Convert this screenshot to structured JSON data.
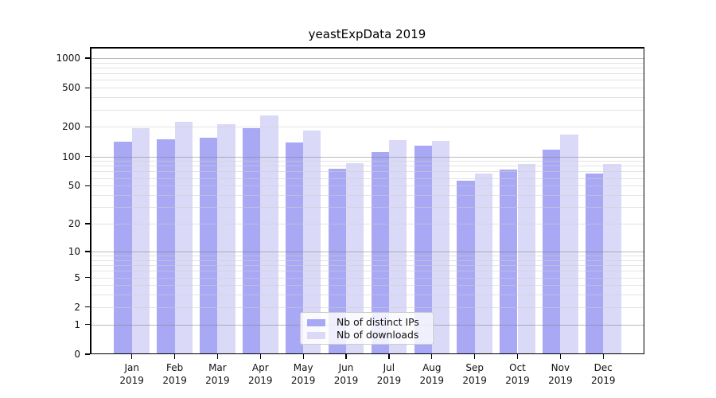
{
  "chart_data": {
    "type": "bar",
    "title": "yeastExpData 2019",
    "scale": "log1p",
    "grid": true,
    "legend_position": "lower center inside axes",
    "categories": [
      "Jan 2019",
      "Feb 2019",
      "Mar 2019",
      "Apr 2019",
      "May 2019",
      "Jun 2019",
      "Jul 2019",
      "Aug 2019",
      "Sep 2019",
      "Oct 2019",
      "Nov 2019",
      "Dec 2019"
    ],
    "x_tick_lines": [
      [
        "Jan",
        "2019"
      ],
      [
        "Feb",
        "2019"
      ],
      [
        "Mar",
        "2019"
      ],
      [
        "Apr",
        "2019"
      ],
      [
        "May",
        "2019"
      ],
      [
        "Jun",
        "2019"
      ],
      [
        "Jul",
        "2019"
      ],
      [
        "Aug",
        "2019"
      ],
      [
        "Sep",
        "2019"
      ],
      [
        "Oct",
        "2019"
      ],
      [
        "Nov",
        "2019"
      ],
      [
        "Dec",
        "2019"
      ]
    ],
    "series": [
      {
        "name": "Nb of distinct IPs",
        "color": "#a8a8f4",
        "values": [
          141,
          149,
          156,
          195,
          140,
          75,
          110,
          128,
          56,
          73,
          118,
          67
        ]
      },
      {
        "name": "Nb of downloads",
        "color": "#dadaf8",
        "values": [
          193,
          225,
          215,
          262,
          185,
          85,
          148,
          144,
          67,
          84,
          167,
          83
        ]
      }
    ],
    "xlabel": "",
    "ylabel": "",
    "y_ticks": [
      0,
      1,
      2,
      5,
      10,
      20,
      50,
      100,
      200,
      500,
      1000
    ],
    "ylim": [
      0,
      1285
    ],
    "major_gridlines": [
      1,
      10,
      100,
      1000
    ],
    "minor_gridlines": [
      2,
      3,
      4,
      5,
      6,
      7,
      8,
      9,
      20,
      30,
      40,
      50,
      60,
      70,
      80,
      90,
      200,
      300,
      400,
      500,
      600,
      700,
      800,
      900
    ]
  },
  "colors": {
    "background": "#ffffff",
    "spine": "#000000",
    "major_grid": "#828282",
    "minor_grid": "#cdcdcd",
    "text": "#111111",
    "legend_border": "#cccccc"
  }
}
